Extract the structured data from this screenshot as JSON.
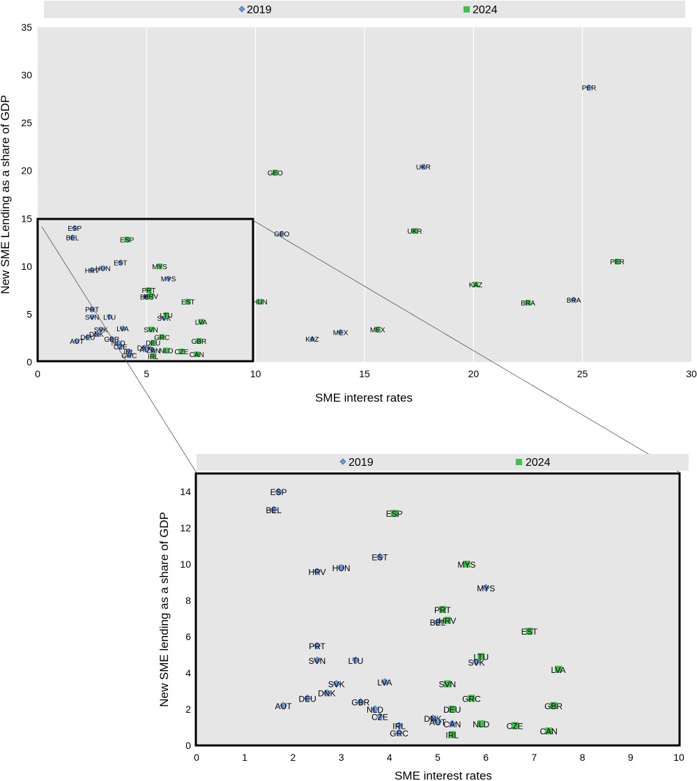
{
  "colors": {
    "series_2019": "#6a9ae0",
    "series_2024": "#3ec24e",
    "plot_bg": "#e6e6e6",
    "legend_bg": "#e6e6e6",
    "grid": "#ffffff",
    "box": "#000000"
  },
  "chart_data": [
    {
      "type": "scatter",
      "xlabel": "SME interest rates",
      "ylabel": "New SME Lending  as a share of GDP",
      "xlim": [
        0,
        30
      ],
      "ylim": [
        0,
        35
      ],
      "xticks": [
        0,
        5,
        10,
        15,
        20,
        25,
        30
      ],
      "yticks": [
        0,
        5,
        10,
        15,
        20,
        25,
        30,
        35
      ],
      "grid": "vertical",
      "legend_position": "top",
      "series": [
        {
          "name": "2019",
          "marker": "diamond",
          "points": [
            {
              "label": "ESP",
              "x": 1.7,
              "y": 14.0
            },
            {
              "label": "BEL",
              "x": 1.6,
              "y": 13.0
            },
            {
              "label": "EST",
              "x": 3.8,
              "y": 10.4
            },
            {
              "label": "HUN",
              "x": 3.0,
              "y": 9.8
            },
            {
              "label": "HRV",
              "x": 2.5,
              "y": 9.6
            },
            {
              "label": "MYS",
              "x": 6.0,
              "y": 8.7
            },
            {
              "label": "PRT",
              "x": 2.5,
              "y": 5.5
            },
            {
              "label": "SVN",
              "x": 2.5,
              "y": 4.7
            },
            {
              "label": "LTU",
              "x": 3.3,
              "y": 4.7
            },
            {
              "label": "SVK",
              "x": 5.8,
              "y": 4.6
            },
            {
              "label": "SVK",
              "x": 2.9,
              "y": 3.4
            },
            {
              "label": "LVA",
              "x": 3.9,
              "y": 3.5
            },
            {
              "label": "DEU",
              "x": 2.3,
              "y": 2.6
            },
            {
              "label": "DNK",
              "x": 2.7,
              "y": 2.9
            },
            {
              "label": "AUT",
              "x": 1.8,
              "y": 2.2
            },
            {
              "label": "GBR",
              "x": 3.4,
              "y": 2.4
            },
            {
              "label": "NLD",
              "x": 3.7,
              "y": 2.0
            },
            {
              "label": "CZE",
              "x": 3.8,
              "y": 1.6
            },
            {
              "label": "IRL",
              "x": 4.2,
              "y": 1.1
            },
            {
              "label": "GRC",
              "x": 4.2,
              "y": 0.7
            },
            {
              "label": "DNK",
              "x": 4.9,
              "y": 1.5
            },
            {
              "label": "CAN",
              "x": 5.3,
              "y": 1.2
            },
            {
              "label": "AUT",
              "x": 5.0,
              "y": 1.3
            },
            {
              "label": "BEL",
              "x": 5.0,
              "y": 6.8
            },
            {
              "label": "UKR",
              "x": 17.7,
              "y": 20.4
            },
            {
              "label": "GEO",
              "x": 11.2,
              "y": 13.4
            },
            {
              "label": "PER",
              "x": 25.3,
              "y": 28.7
            },
            {
              "label": "BRA",
              "x": 24.6,
              "y": 6.5
            },
            {
              "label": "MEX",
              "x": 13.9,
              "y": 3.1
            },
            {
              "label": "KAZ",
              "x": 12.6,
              "y": 2.4
            }
          ]
        },
        {
          "name": "2024",
          "marker": "square",
          "points": [
            {
              "label": "ESP",
              "x": 4.1,
              "y": 12.8
            },
            {
              "label": "MYS",
              "x": 5.6,
              "y": 10.0
            },
            {
              "label": "PRT",
              "x": 5.1,
              "y": 7.5
            },
            {
              "label": "HRV",
              "x": 5.2,
              "y": 6.9
            },
            {
              "label": "EST",
              "x": 6.9,
              "y": 6.3
            },
            {
              "label": "LTU",
              "x": 5.9,
              "y": 4.9
            },
            {
              "label": "LVA",
              "x": 7.5,
              "y": 4.2
            },
            {
              "label": "SVN",
              "x": 5.2,
              "y": 3.4
            },
            {
              "label": "GRC",
              "x": 5.7,
              "y": 2.6
            },
            {
              "label": "DEU",
              "x": 5.3,
              "y": 2.0
            },
            {
              "label": "GBR",
              "x": 7.4,
              "y": 2.2
            },
            {
              "label": "NLD",
              "x": 5.9,
              "y": 1.2
            },
            {
              "label": "CZE",
              "x": 6.6,
              "y": 1.1
            },
            {
              "label": "CAN",
              "x": 7.3,
              "y": 0.8
            },
            {
              "label": "IRL",
              "x": 5.3,
              "y": 0.6
            },
            {
              "label": "GEO",
              "x": 10.9,
              "y": 19.8
            },
            {
              "label": "UKR",
              "x": 17.3,
              "y": 13.7
            },
            {
              "label": "HUN",
              "x": 10.2,
              "y": 6.3
            },
            {
              "label": "PER",
              "x": 26.6,
              "y": 10.5
            },
            {
              "label": "KAZ",
              "x": 20.1,
              "y": 8.1
            },
            {
              "label": "BRA",
              "x": 22.5,
              "y": 6.2
            },
            {
              "label": "MEX",
              "x": 15.6,
              "y": 3.4
            }
          ]
        }
      ]
    },
    {
      "type": "scatter",
      "xlabel": "SME interest rates",
      "ylabel": "New SME lending  as a share of GDP",
      "xlim": [
        0,
        10
      ],
      "ylim": [
        0,
        15
      ],
      "xticks": [
        0,
        1,
        2,
        3,
        4,
        5,
        6,
        7,
        8,
        9,
        10
      ],
      "yticks": [
        0,
        2,
        4,
        6,
        8,
        10,
        12,
        14
      ],
      "legend_position": "top",
      "series_ref": "zoom of first chart, x 0–10, y 0–15"
    }
  ],
  "legend": [
    {
      "label": "2019"
    },
    {
      "label": "2024"
    }
  ]
}
